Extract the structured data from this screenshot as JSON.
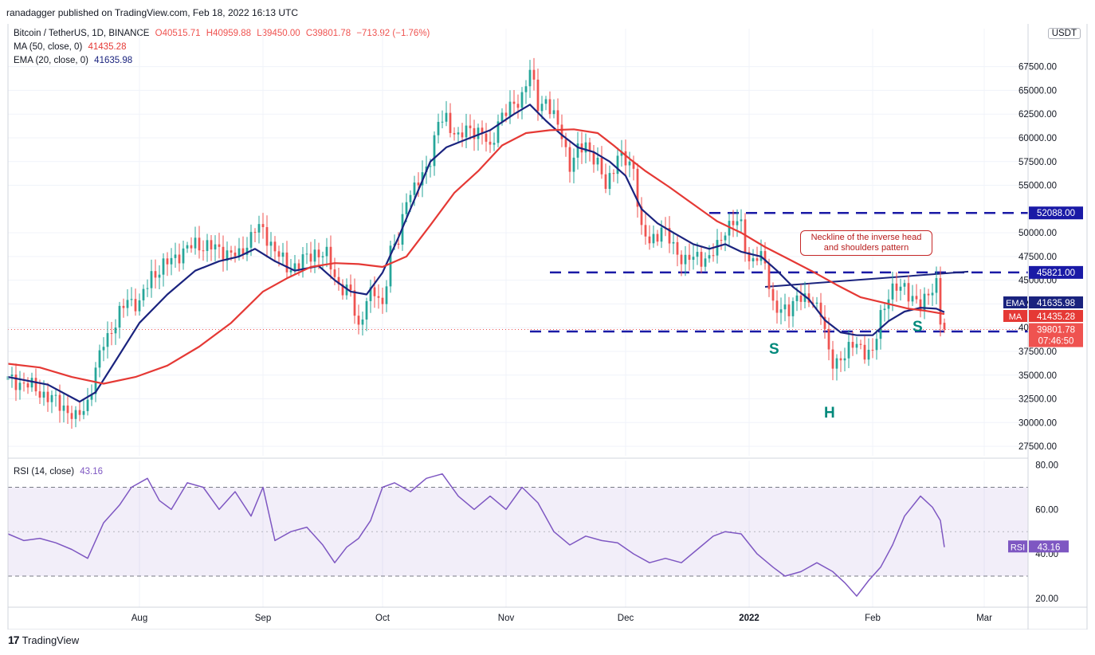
{
  "header": {
    "published": "ranadagger published on TradingView.com, Feb 18, 2022 16:13 UTC"
  },
  "legend": {
    "symbol": "Bitcoin / TetherUS, 1D, BINANCE",
    "open": "O40515.71",
    "high": "H40959.88",
    "low": "L39450.00",
    "close": "C39801.78",
    "change": "−713.92 (−1.76%)",
    "ma_label": "MA (50, close, 0)",
    "ma_value": "41435.28",
    "ema_label": "EMA (20, close, 0)",
    "ema_value": "41635.98",
    "rsi_label": "RSI (14, close)",
    "rsi_value": "43.16"
  },
  "currency": "USDT",
  "footer": {
    "brand": "TradingView"
  },
  "colors": {
    "up": "#26a69a",
    "down": "#ef5350",
    "ema": "#1a237e",
    "ma": "#e53935",
    "rsi": "#7e57c2",
    "level": "#1a1aa6"
  },
  "annotations": {
    "neckline_note": "Neckline of the inverse head and shoulders pattern",
    "left_shoulder": "S",
    "head": "H",
    "right_shoulder": "S"
  },
  "price_tags": {
    "ema_tag": "EMA",
    "ema_price": "41635.98",
    "ma_tag": "MA",
    "ma_price": "41435.28",
    "last_price": "39801.78",
    "countdown": "07:46:50",
    "rsi_tag": "RSI",
    "rsi_price": "43.16"
  },
  "chart_data": {
    "type": "candlestick",
    "title": "Bitcoin / TetherUS, 1D, BINANCE",
    "price_axis": {
      "ylim": [
        26500,
        71500
      ],
      "ticks": [
        "27500.00",
        "30000.00",
        "32500.00",
        "35000.00",
        "37500.00",
        "40000.00",
        "42500.00",
        "45000.00",
        "47500.00",
        "50000.00",
        "55000.00",
        "57500.00",
        "60000.00",
        "62500.00",
        "65000.00",
        "67500.00"
      ],
      "tick_values": [
        27500,
        30000,
        32500,
        35000,
        37500,
        40000,
        42500,
        45000,
        47500,
        50000,
        55000,
        57500,
        60000,
        62500,
        65000,
        67500
      ]
    },
    "x_labels": [
      {
        "day": 33,
        "label": "Aug"
      },
      {
        "day": 64,
        "label": "Sep"
      },
      {
        "day": 94,
        "label": "Oct"
      },
      {
        "day": 125,
        "label": "Nov"
      },
      {
        "day": 155,
        "label": "Dec"
      },
      {
        "day": 186,
        "label": "2022"
      },
      {
        "day": 217,
        "label": "Feb"
      },
      {
        "day": 245,
        "label": "Mar"
      }
    ],
    "x_domain": [
      0,
      256
    ],
    "levels": [
      {
        "price": 52088,
        "label": "52088.00"
      },
      {
        "price": 45821,
        "label": "45821.00"
      },
      {
        "price": 39600,
        "label": "39600.00"
      }
    ],
    "neckline": [
      [
        190,
        44300
      ],
      [
        241,
        45900
      ]
    ],
    "close_points": [
      [
        0,
        34500
      ],
      [
        5,
        34000
      ],
      [
        10,
        32700
      ],
      [
        14,
        31700
      ],
      [
        17,
        30300
      ],
      [
        20,
        32200
      ],
      [
        24,
        38500
      ],
      [
        27,
        40500
      ],
      [
        30,
        43000
      ],
      [
        33,
        42500
      ],
      [
        36,
        45500
      ],
      [
        40,
        46800
      ],
      [
        43,
        47800
      ],
      [
        47,
        48800
      ],
      [
        50,
        48600
      ],
      [
        53,
        48200
      ],
      [
        58,
        47500
      ],
      [
        62,
        50400
      ],
      [
        64,
        50200
      ],
      [
        67,
        48200
      ],
      [
        70,
        46300
      ],
      [
        73,
        46700
      ],
      [
        77,
        48000
      ],
      [
        80,
        47500
      ],
      [
        83,
        44500
      ],
      [
        86,
        43500
      ],
      [
        88,
        40000
      ],
      [
        90,
        43000
      ],
      [
        92,
        43600
      ],
      [
        94,
        42500
      ],
      [
        96,
        48000
      ],
      [
        98,
        49000
      ],
      [
        100,
        54000
      ],
      [
        102,
        54500
      ],
      [
        104,
        56000
      ],
      [
        106,
        58000
      ],
      [
        108,
        61500
      ],
      [
        110,
        62000
      ],
      [
        113,
        60000
      ],
      [
        116,
        61000
      ],
      [
        119,
        60500
      ],
      [
        121,
        58500
      ],
      [
        123,
        62000
      ],
      [
        126,
        63000
      ],
      [
        129,
        64500
      ],
      [
        131,
        67000
      ],
      [
        133,
        63500
      ],
      [
        135,
        64000
      ],
      [
        137,
        62000
      ],
      [
        139,
        60500
      ],
      [
        141,
        57000
      ],
      [
        143,
        58500
      ],
      [
        145,
        59500
      ],
      [
        148,
        57000
      ],
      [
        150,
        55000
      ],
      [
        153,
        58000
      ],
      [
        155,
        57500
      ],
      [
        157,
        57000
      ],
      [
        159,
        50000
      ],
      [
        161,
        49000
      ],
      [
        164,
        50500
      ],
      [
        167,
        48500
      ],
      [
        170,
        47000
      ],
      [
        173,
        47500
      ],
      [
        176,
        47200
      ],
      [
        178,
        48500
      ],
      [
        180,
        50500
      ],
      [
        182,
        51000
      ],
      [
        184,
        50800
      ],
      [
        186,
        47000
      ],
      [
        188,
        47300
      ],
      [
        190,
        47000
      ],
      [
        192,
        42500
      ],
      [
        194,
        41500
      ],
      [
        196,
        42000
      ],
      [
        198,
        43500
      ],
      [
        200,
        42600
      ],
      [
        202,
        43000
      ],
      [
        204,
        41800
      ],
      [
        206,
        37000
      ],
      [
        207,
        36300
      ],
      [
        209,
        36900
      ],
      [
        211,
        37500
      ],
      [
        213,
        38500
      ],
      [
        215,
        37500
      ],
      [
        217,
        37000
      ],
      [
        219,
        41500
      ],
      [
        221,
        43500
      ],
      [
        223,
        44000
      ],
      [
        225,
        44500
      ],
      [
        227,
        43000
      ],
      [
        229,
        42000
      ],
      [
        231,
        44000
      ],
      [
        233,
        44500
      ],
      [
        234,
        40500
      ],
      [
        235,
        39800
      ]
    ],
    "series": [
      {
        "name": "EMA (20, close, 0)",
        "last": 41635.98,
        "points": [
          [
            0,
            34800
          ],
          [
            10,
            34000
          ],
          [
            18,
            32200
          ],
          [
            22,
            33200
          ],
          [
            27,
            36500
          ],
          [
            33,
            40500
          ],
          [
            40,
            43500
          ],
          [
            47,
            46000
          ],
          [
            53,
            47000
          ],
          [
            58,
            47500
          ],
          [
            62,
            48300
          ],
          [
            67,
            47000
          ],
          [
            72,
            46000
          ],
          [
            78,
            46500
          ],
          [
            82,
            45000
          ],
          [
            86,
            43800
          ],
          [
            90,
            43500
          ],
          [
            94,
            45800
          ],
          [
            98,
            49500
          ],
          [
            102,
            53500
          ],
          [
            106,
            57500
          ],
          [
            110,
            59000
          ],
          [
            116,
            60000
          ],
          [
            121,
            60800
          ],
          [
            127,
            62500
          ],
          [
            131,
            63500
          ],
          [
            135,
            61800
          ],
          [
            139,
            60300
          ],
          [
            143,
            59000
          ],
          [
            147,
            58500
          ],
          [
            151,
            57500
          ],
          [
            155,
            56000
          ],
          [
            159,
            52500
          ],
          [
            163,
            51000
          ],
          [
            167,
            50000
          ],
          [
            172,
            48800
          ],
          [
            176,
            48300
          ],
          [
            180,
            48800
          ],
          [
            184,
            48000
          ],
          [
            189,
            47500
          ],
          [
            193,
            46000
          ],
          [
            197,
            44300
          ],
          [
            201,
            43000
          ],
          [
            205,
            40800
          ],
          [
            209,
            39500
          ],
          [
            213,
            39200
          ],
          [
            217,
            39200
          ],
          [
            221,
            40700
          ],
          [
            225,
            41700
          ],
          [
            229,
            42100
          ],
          [
            233,
            42000
          ],
          [
            235,
            41636
          ]
        ]
      },
      {
        "name": "MA (50, close, 0)",
        "last": 41435.28,
        "points": [
          [
            0,
            36200
          ],
          [
            8,
            35800
          ],
          [
            16,
            34800
          ],
          [
            24,
            34100
          ],
          [
            32,
            34800
          ],
          [
            40,
            36000
          ],
          [
            48,
            38000
          ],
          [
            56,
            40500
          ],
          [
            64,
            43800
          ],
          [
            70,
            45200
          ],
          [
            76,
            46400
          ],
          [
            82,
            46800
          ],
          [
            88,
            46700
          ],
          [
            94,
            46400
          ],
          [
            100,
            47500
          ],
          [
            106,
            50800
          ],
          [
            112,
            54200
          ],
          [
            118,
            56500
          ],
          [
            124,
            59200
          ],
          [
            130,
            60500
          ],
          [
            136,
            60800
          ],
          [
            142,
            60900
          ],
          [
            148,
            60500
          ],
          [
            152,
            59200
          ],
          [
            156,
            57800
          ],
          [
            160,
            56500
          ],
          [
            166,
            54800
          ],
          [
            172,
            53000
          ],
          [
            178,
            51200
          ],
          [
            184,
            50000
          ],
          [
            190,
            48500
          ],
          [
            196,
            47200
          ],
          [
            202,
            45900
          ],
          [
            208,
            44500
          ],
          [
            214,
            43200
          ],
          [
            220,
            42600
          ],
          [
            226,
            42000
          ],
          [
            230,
            41800
          ],
          [
            235,
            41435
          ]
        ]
      }
    ],
    "rsi": {
      "name": "RSI (14, close)",
      "last": 43.16,
      "ylim": [
        16,
        82
      ],
      "band": [
        30,
        70
      ],
      "midline": 50,
      "ticks": [
        "20.00",
        "40.00",
        "60.00",
        "80.00"
      ],
      "tick_values": [
        20,
        40,
        60,
        80
      ],
      "points": [
        [
          0,
          49
        ],
        [
          4,
          46
        ],
        [
          8,
          47
        ],
        [
          12,
          45
        ],
        [
          16,
          42
        ],
        [
          20,
          38
        ],
        [
          24,
          54
        ],
        [
          28,
          62
        ],
        [
          31,
          70
        ],
        [
          35,
          74
        ],
        [
          38,
          64
        ],
        [
          41,
          60
        ],
        [
          45,
          72
        ],
        [
          49,
          70
        ],
        [
          53,
          60
        ],
        [
          57,
          68
        ],
        [
          61,
          57
        ],
        [
          64,
          70
        ],
        [
          67,
          46
        ],
        [
          71,
          50
        ],
        [
          75,
          52
        ],
        [
          79,
          44
        ],
        [
          82,
          36
        ],
        [
          85,
          43
        ],
        [
          88,
          47
        ],
        [
          91,
          55
        ],
        [
          94,
          70
        ],
        [
          97,
          72
        ],
        [
          101,
          68
        ],
        [
          105,
          74
        ],
        [
          109,
          76
        ],
        [
          113,
          66
        ],
        [
          117,
          60
        ],
        [
          121,
          66
        ],
        [
          125,
          60
        ],
        [
          129,
          70
        ],
        [
          133,
          63
        ],
        [
          137,
          50
        ],
        [
          141,
          44
        ],
        [
          145,
          48
        ],
        [
          149,
          46
        ],
        [
          153,
          45
        ],
        [
          157,
          40
        ],
        [
          161,
          36
        ],
        [
          165,
          38
        ],
        [
          169,
          36
        ],
        [
          173,
          42
        ],
        [
          177,
          48
        ],
        [
          180,
          50
        ],
        [
          184,
          49
        ],
        [
          188,
          40
        ],
        [
          192,
          34
        ],
        [
          195,
          30
        ],
        [
          199,
          32
        ],
        [
          203,
          36
        ],
        [
          207,
          32
        ],
        [
          210,
          27
        ],
        [
          213,
          21
        ],
        [
          216,
          28
        ],
        [
          219,
          34
        ],
        [
          222,
          44
        ],
        [
          225,
          57
        ],
        [
          229,
          66
        ],
        [
          232,
          61
        ],
        [
          234,
          55
        ],
        [
          235,
          43
        ]
      ]
    }
  }
}
